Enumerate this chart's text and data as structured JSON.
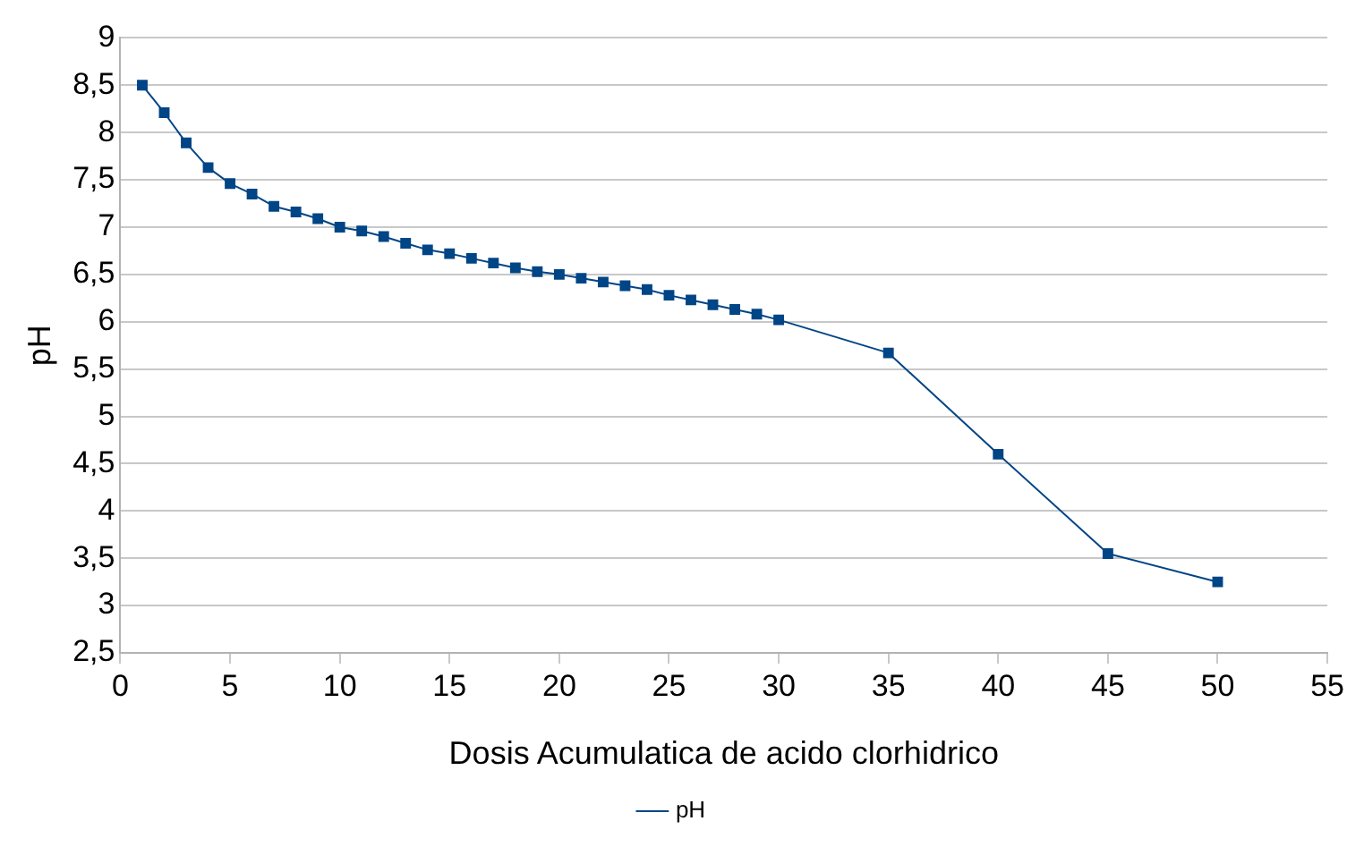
{
  "chart_data": {
    "type": "line",
    "xlabel": "Dosis Acumulatica de acido clorhidrico",
    "ylabel": "pH",
    "x": [
      1,
      2,
      3,
      4,
      5,
      6,
      7,
      8,
      9,
      10,
      11,
      12,
      13,
      14,
      15,
      16,
      17,
      18,
      19,
      20,
      21,
      22,
      23,
      24,
      25,
      26,
      27,
      28,
      29,
      30,
      35,
      40,
      45,
      50
    ],
    "series": [
      {
        "name": "pH",
        "color": "#004586",
        "values": [
          8.5,
          8.21,
          7.89,
          7.63,
          7.46,
          7.35,
          7.22,
          7.16,
          7.09,
          7.0,
          6.96,
          6.9,
          6.83,
          6.76,
          6.72,
          6.67,
          6.62,
          6.57,
          6.53,
          6.5,
          6.46,
          6.42,
          6.38,
          6.34,
          6.28,
          6.23,
          6.18,
          6.13,
          6.08,
          6.02,
          5.67,
          4.6,
          3.55,
          3.25
        ]
      }
    ],
    "xlim": [
      0,
      55
    ],
    "xticks": [
      0,
      5,
      10,
      15,
      20,
      25,
      30,
      35,
      40,
      45,
      50,
      55
    ],
    "ylim": [
      2.5,
      9
    ],
    "yticks": [
      {
        "value": 2.5,
        "label": "2,5"
      },
      3,
      {
        "value": 3.5,
        "label": "3,5"
      },
      4,
      {
        "value": 4.5,
        "label": "4,5"
      },
      5,
      {
        "value": 5.5,
        "label": "5,5"
      },
      6,
      {
        "value": 6.5,
        "label": "6,5"
      },
      7,
      {
        "value": 7.5,
        "label": "7,5"
      },
      8,
      {
        "value": 8.5,
        "label": "8,5"
      },
      9
    ],
    "grid": "y",
    "legend": "bottom",
    "marker": "square",
    "line_style": "solid"
  }
}
